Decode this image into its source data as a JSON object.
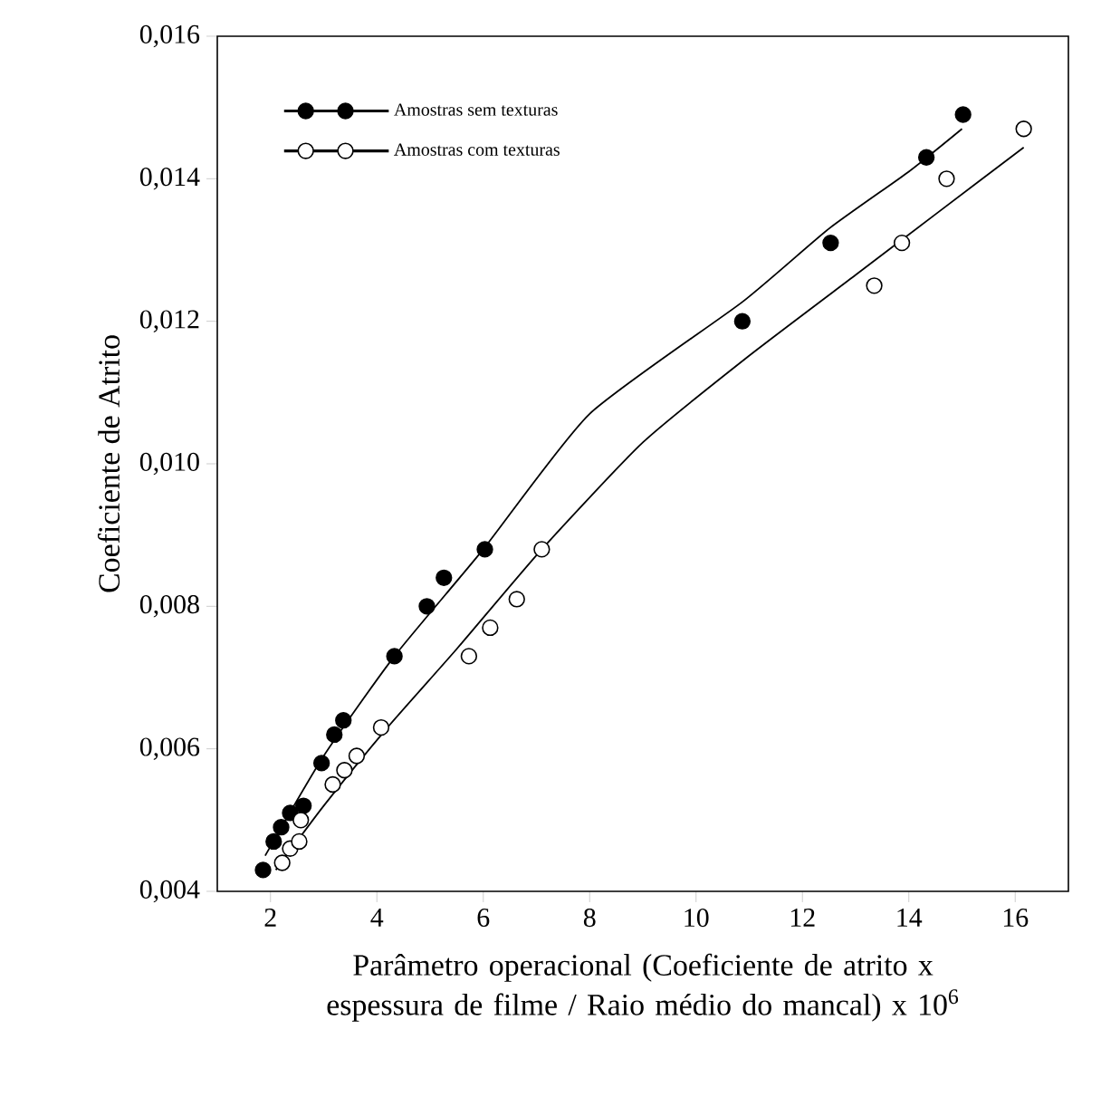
{
  "chart_data": {
    "type": "scatter",
    "xlabel": "Parâmetro operacional (Coeficiente de atrito x espessura de filme / Raio médio do mancal) x 10$^{6}$",
    "ylabel": "Coeficiente de Atrito",
    "xlim": [
      1,
      17
    ],
    "xticks": [
      2,
      4,
      6,
      8,
      10,
      12,
      14,
      16
    ],
    "ylim": [
      0.004,
      0.016
    ],
    "yticks": [
      {
        "value": 0.004,
        "label": "0,004"
      },
      {
        "value": 0.006,
        "label": "0,006"
      },
      {
        "value": 0.008,
        "label": "0,008"
      },
      {
        "value": 0.01,
        "label": "0,010"
      },
      {
        "value": 0.012,
        "label": "0,012"
      },
      {
        "value": 0.014,
        "label": "0,014"
      },
      {
        "value": 0.016,
        "label": "0,016"
      }
    ],
    "legend": "top left",
    "series": [
      {
        "name": "Amostras sem texturas",
        "marker": "circle",
        "color": "#000000",
        "x": [
          1.86,
          2.06,
          2.2,
          2.37,
          2.62,
          2.96,
          3.2,
          3.37,
          4.33,
          4.94,
          5.26,
          6.03,
          10.87,
          12.53,
          14.33,
          15.02
        ],
        "values": [
          0.0043,
          0.0047,
          0.0049,
          0.0051,
          0.0052,
          0.0058,
          0.0062,
          0.0064,
          0.0073,
          0.008,
          0.0084,
          0.0088,
          0.012,
          0.0131,
          0.0143,
          0.0149
        ]
      },
      {
        "name": "Amostras com texturas",
        "marker": "circle",
        "color": "#ffffff",
        "x": [
          2.22,
          2.37,
          2.54,
          2.57,
          3.17,
          3.39,
          3.62,
          4.08,
          5.73,
          6.13,
          6.63,
          7.1,
          13.35,
          13.87,
          14.71,
          16.16
        ],
        "values": [
          0.0044,
          0.0046,
          0.0047,
          0.005,
          0.0055,
          0.0057,
          0.0059,
          0.0063,
          0.0073,
          0.0077,
          0.0081,
          0.0088,
          0.0125,
          0.0131,
          0.014,
          0.0147
        ]
      },
      {
        "type": "line",
        "marker": "none",
        "color": "#000000",
        "x": [
          1.9,
          3,
          4.33,
          6,
          8,
          10.87,
          12.5,
          14,
          15
        ],
        "values": [
          0.0045,
          0.0059,
          0.0073,
          0.0088,
          0.0107,
          0.01227,
          0.0133,
          0.0141,
          0.0147
        ]
      },
      {
        "type": "line",
        "marker": "none",
        "color": "#000000",
        "x": [
          2.1,
          3,
          4.2,
          5.5,
          7.1,
          9,
          10.97,
          13,
          14.5,
          16.16
        ],
        "values": [
          0.0043,
          0.0052,
          0.0063,
          0.0074,
          0.0088,
          0.0103,
          0.0115,
          0.01265,
          0.0135,
          0.01444
        ]
      }
    ]
  }
}
